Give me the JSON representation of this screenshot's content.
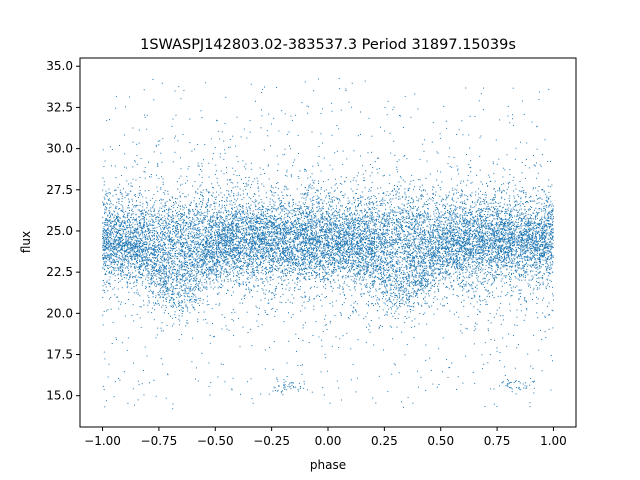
{
  "chart_data": {
    "type": "scatter",
    "title": "1SWASPJ142803.02-383537.3 Period 31897.15039s",
    "xlabel": "phase",
    "ylabel": "flux",
    "xlim": [
      -1.1,
      1.1
    ],
    "ylim": [
      13.1,
      35.5
    ],
    "xticks": [
      -1.0,
      -0.75,
      -0.5,
      -0.25,
      0.0,
      0.25,
      0.5,
      0.75,
      1.0
    ],
    "xtick_labels": [
      "−1.00",
      "−0.75",
      "−0.50",
      "−0.25",
      "0.00",
      "0.25",
      "0.50",
      "0.75",
      "1.00"
    ],
    "yticks": [
      15.0,
      17.5,
      20.0,
      22.5,
      25.0,
      27.5,
      30.0,
      32.5,
      35.0
    ],
    "ytick_labels": [
      "15.0",
      "17.5",
      "20.0",
      "22.5",
      "25.0",
      "27.5",
      "30.0",
      "32.5",
      "35.0"
    ],
    "grid": false,
    "marker_color": "#1f77b4",
    "series": [
      {
        "x_range": [
          -1.0,
          1.0
        ],
        "main_band": {
          "center": 24.3,
          "spread_min": 21.5,
          "spread_max": 28.0
        },
        "dip": {
          "phase_minima": [
            -0.67,
            0.33
          ],
          "min_flux": 21.5,
          "half_width": 0.25
        },
        "outlier_range": [
          14.2,
          34.3
        ],
        "low_flux_clumps": [
          {
            "x": -0.17,
            "y": 15.6
          },
          {
            "x": 0.83,
            "y": 15.6
          }
        ]
      }
    ]
  }
}
